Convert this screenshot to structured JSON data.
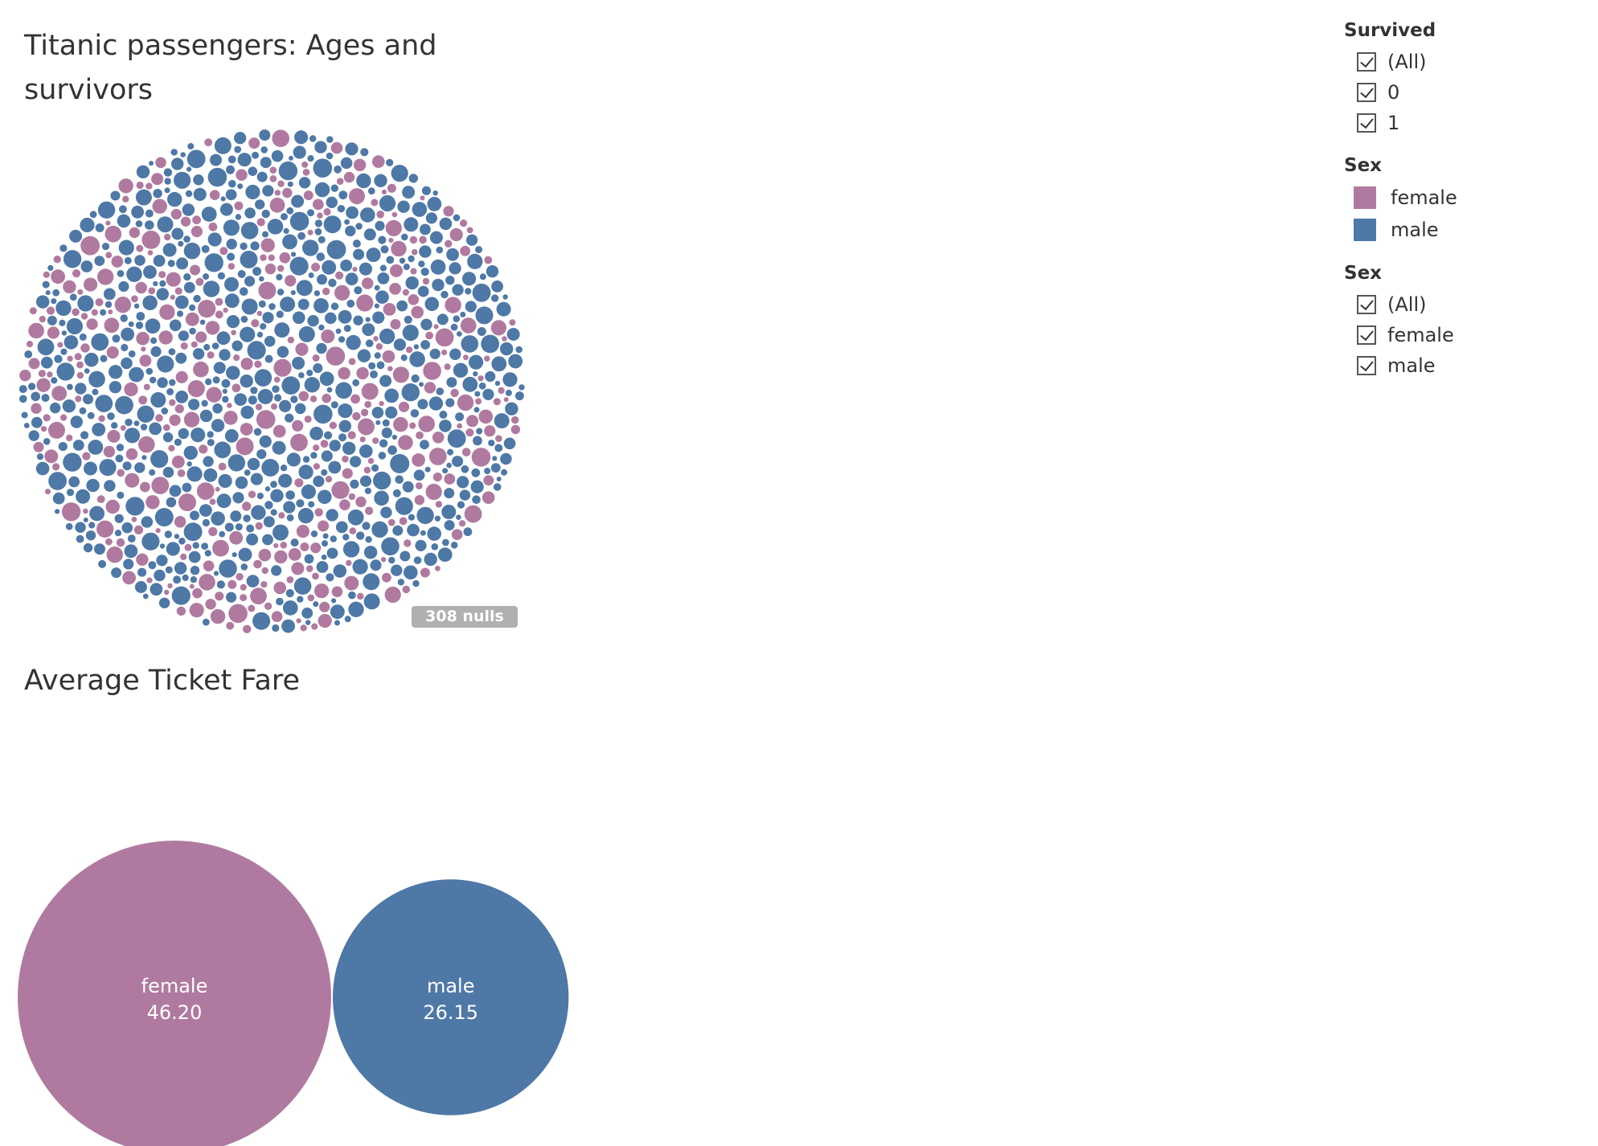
{
  "page": {
    "title_top": "Titanic passengers: Ages and survivors",
    "title_bottom": "Average Ticket Fare",
    "nulls_label": "308 nulls"
  },
  "colors": {
    "female": "#b07aa0",
    "male": "#4e78a6"
  },
  "filters": {
    "survived": {
      "title": "Survived",
      "options": [
        {
          "label": "(All)",
          "checked": true
        },
        {
          "label": "0",
          "checked": true
        },
        {
          "label": "1",
          "checked": true
        }
      ]
    },
    "sex_legend": {
      "title": "Sex",
      "items": [
        {
          "label": "female",
          "color": "#b07aa0"
        },
        {
          "label": "male",
          "color": "#4e78a6"
        }
      ]
    },
    "sex_filter": {
      "title": "Sex",
      "options": [
        {
          "label": "(All)",
          "checked": true
        },
        {
          "label": "female",
          "checked": true
        },
        {
          "label": "male",
          "checked": true
        }
      ]
    }
  },
  "chart_data": [
    {
      "type": "packed-bubble",
      "title": "Titanic passengers: Ages and survivors",
      "description_values": "one bubble per passenger, sized by age, colored by sex",
      "series": [
        {
          "name": "female",
          "color": "#b07aa0"
        },
        {
          "name": "male",
          "color": "#4e78a6"
        }
      ],
      "nulls": 308
    },
    {
      "type": "packed-bubble",
      "title": "Average Ticket Fare",
      "categories": [
        "female",
        "male"
      ],
      "values": [
        46.2,
        26.15
      ],
      "value_labels": [
        "46.20",
        "26.15"
      ],
      "colors": [
        "#b07aa0",
        "#4e78a6"
      ]
    }
  ]
}
